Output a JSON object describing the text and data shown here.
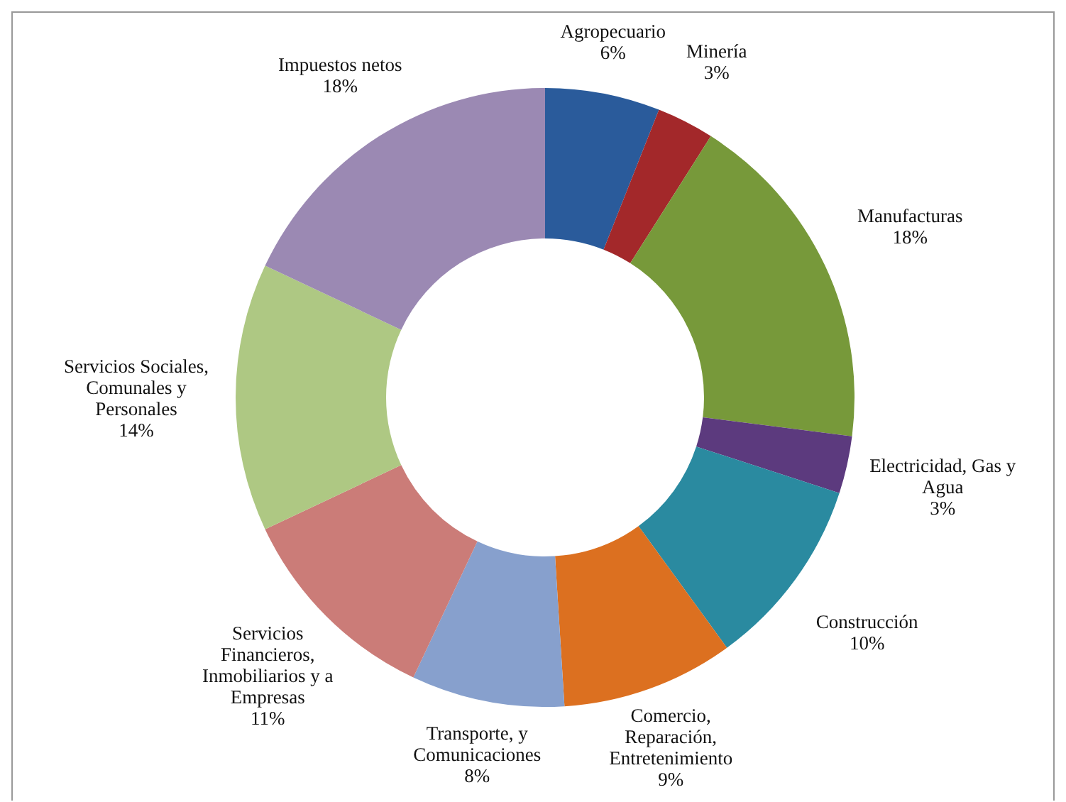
{
  "chart_data": {
    "type": "donut",
    "categories": [
      "Agropecuario",
      "Minería",
      "Manufacturas",
      "Electricidad, Gas y Agua",
      "Construcción",
      "Comercio, Reparación, Entretenimiento",
      "Transporte, y Comunicaciones",
      "Servicios Financieros, Inmobiliarios y a Empresas",
      "Servicios Sociales, Comunales y Personales",
      "Impuestos netos"
    ],
    "values": [
      6,
      3,
      18,
      3,
      10,
      9,
      8,
      11,
      14,
      18
    ],
    "value_labels": [
      "6%",
      "3%",
      "18%",
      "3%",
      "10%",
      "9%",
      "8%",
      "11%",
      "14%",
      "18%"
    ],
    "colors": [
      "#2a5b9b",
      "#a3282a",
      "#77993a",
      "#5c3a7e",
      "#2a8aa0",
      "#dc7020",
      "#87a0cd",
      "#cb7c78",
      "#aec883",
      "#9b89b3"
    ],
    "legend": false
  }
}
